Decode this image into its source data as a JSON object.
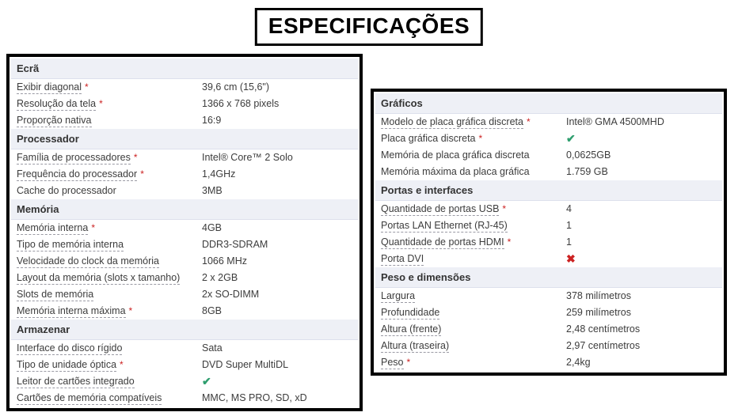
{
  "title": "ESPECIFICAÇÕES",
  "icons": {
    "check": "✔",
    "cross": "✖"
  },
  "colors": {
    "check": "#2E9E6E",
    "cross": "#CC2222",
    "asterisk": "#CC2222",
    "section_header_bg": "#EEF0F6"
  },
  "tables": [
    {
      "id": "left",
      "sections": [
        {
          "id": "ecra",
          "header": "Ecrã",
          "rows": [
            {
              "label": "Exibir diagonal",
              "required": true,
              "underlined": true,
              "value": "39,6 cm (15,6\")",
              "value_type": "text"
            },
            {
              "label": "Resolução da tela",
              "required": true,
              "underlined": true,
              "value": "1366 x 768 pixels",
              "value_type": "text"
            },
            {
              "label": "Proporção nativa",
              "required": false,
              "underlined": true,
              "value": "16:9",
              "value_type": "text"
            }
          ]
        },
        {
          "id": "processador",
          "header": "Processador",
          "rows": [
            {
              "label": "Família de processadores",
              "required": true,
              "underlined": true,
              "value": "Intel® Core™ 2 Solo",
              "value_type": "text"
            },
            {
              "label": "Frequência do processador",
              "required": true,
              "underlined": true,
              "value": "1,4GHz",
              "value_type": "text"
            },
            {
              "label": "Cache do processador",
              "required": false,
              "underlined": false,
              "value": "3MB",
              "value_type": "text"
            }
          ]
        },
        {
          "id": "memoria",
          "header": "Memória",
          "rows": [
            {
              "label": "Memória interna",
              "required": true,
              "underlined": true,
              "value": "4GB",
              "value_type": "text"
            },
            {
              "label": "Tipo de memória interna",
              "required": false,
              "underlined": true,
              "value": "DDR3-SDRAM",
              "value_type": "text"
            },
            {
              "label": "Velocidade do clock da memória",
              "required": false,
              "underlined": true,
              "value": "1066 MHz",
              "value_type": "text"
            },
            {
              "label": "Layout da memória (slots x tamanho)",
              "required": false,
              "underlined": true,
              "value": "2 x 2GB",
              "value_type": "text"
            },
            {
              "label": "Slots de memória",
              "required": false,
              "underlined": true,
              "value": "2x SO-DIMM",
              "value_type": "text"
            },
            {
              "label": "Memória interna máxima",
              "required": true,
              "underlined": true,
              "value": "8GB",
              "value_type": "text"
            }
          ]
        },
        {
          "id": "armazenar",
          "header": "Armazenar",
          "rows": [
            {
              "label": "Interface do disco rígido",
              "required": false,
              "underlined": true,
              "value": "Sata",
              "value_type": "text"
            },
            {
              "label": "Tipo de unidade óptica",
              "required": true,
              "underlined": true,
              "value": "DVD Super MultiDL",
              "value_type": "text"
            },
            {
              "label": "Leitor de cartões integrado",
              "required": false,
              "underlined": true,
              "value": "",
              "value_type": "check"
            },
            {
              "label": "Cartões de memória compatíveis",
              "required": false,
              "underlined": true,
              "value": "MMC, MS PRO, SD, xD",
              "value_type": "text"
            }
          ]
        }
      ]
    },
    {
      "id": "right",
      "sections": [
        {
          "id": "graficos",
          "header": "Gráficos",
          "rows": [
            {
              "label": "Modelo de placa gráfica discreta",
              "required": true,
              "underlined": true,
              "value": "Intel® GMA 4500MHD",
              "value_type": "text"
            },
            {
              "label": "Placa gráfica discreta",
              "required": true,
              "underlined": false,
              "value": "",
              "value_type": "check"
            },
            {
              "label": "Memória de placa gráfica discreta",
              "required": false,
              "underlined": false,
              "value": "0,0625GB",
              "value_type": "text"
            },
            {
              "label": "Memória máxima da placa gráfica",
              "required": false,
              "underlined": false,
              "value": "1.759 GB",
              "value_type": "text"
            }
          ]
        },
        {
          "id": "portas-e-interfaces",
          "header": "Portas e interfaces",
          "rows": [
            {
              "label": "Quantidade de portas USB",
              "required": true,
              "underlined": true,
              "value": "4",
              "value_type": "text"
            },
            {
              "label": "Portas LAN Ethernet (RJ-45)",
              "required": false,
              "underlined": true,
              "value": "1",
              "value_type": "text"
            },
            {
              "label": "Quantidade de portas HDMI",
              "required": true,
              "underlined": true,
              "value": "1",
              "value_type": "text"
            },
            {
              "label": "Porta DVI",
              "required": false,
              "underlined": true,
              "value": "",
              "value_type": "cross"
            }
          ]
        },
        {
          "id": "peso-e-dimensoes",
          "header": "Peso e dimensões",
          "rows": [
            {
              "label": "Largura",
              "required": false,
              "underlined": true,
              "value": "378 milímetros",
              "value_type": "text"
            },
            {
              "label": "Profundidade",
              "required": false,
              "underlined": true,
              "value": "259 milímetros",
              "value_type": "text"
            },
            {
              "label": "Altura (frente)",
              "required": false,
              "underlined": true,
              "value": "2,48 centímetros",
              "value_type": "text"
            },
            {
              "label": "Altura (traseira)",
              "required": false,
              "underlined": true,
              "value": "2,97 centímetros",
              "value_type": "text"
            },
            {
              "label": "Peso",
              "required": true,
              "underlined": true,
              "value": "2,4kg",
              "value_type": "text"
            }
          ]
        }
      ]
    }
  ]
}
